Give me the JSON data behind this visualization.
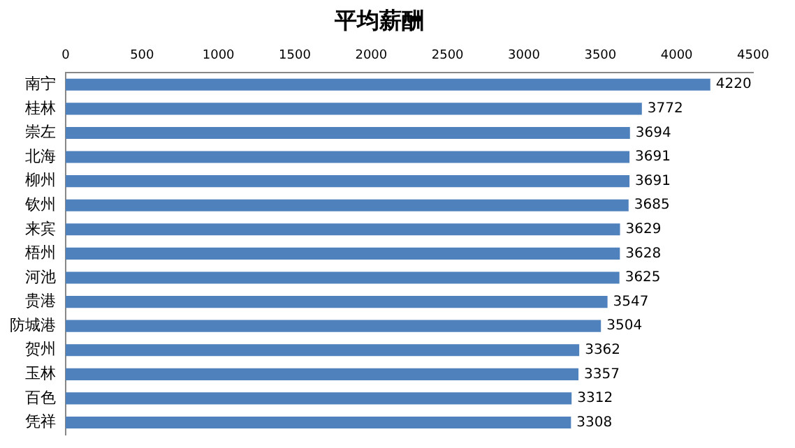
{
  "chart_data": {
    "type": "bar",
    "title": "平均薪酬",
    "orientation": "horizontal",
    "categories": [
      "南宁",
      "桂林",
      "崇左",
      "北海",
      "柳州",
      "钦州",
      "来宾",
      "梧州",
      "河池",
      "贵港",
      "防城港",
      "贺州",
      "玉林",
      "百色",
      "凭祥"
    ],
    "values": [
      4220,
      3772,
      3694,
      3691,
      3691,
      3685,
      3629,
      3628,
      3625,
      3547,
      3504,
      3362,
      3357,
      3312,
      3308
    ],
    "color": "#4f81bd",
    "xlim": [
      0,
      4500
    ],
    "xticks": [
      0,
      500,
      1000,
      1500,
      2000,
      2500,
      3000,
      3500,
      4000,
      4500
    ],
    "data_labels": true,
    "grid": false,
    "legend": false
  }
}
